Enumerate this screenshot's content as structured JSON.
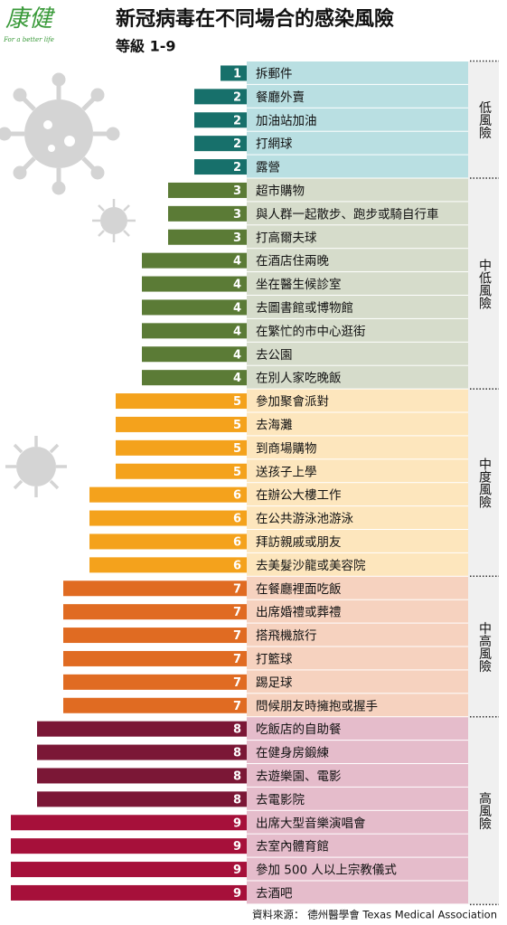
{
  "logo": {
    "name": "康健",
    "tagline": "For a better life"
  },
  "chart_data": {
    "type": "bar",
    "title": "新冠病毒在不同場合的感染風險",
    "subtitle": "等級 1-9",
    "series": [
      {
        "name": "低風險",
        "background": "#b9dfe2",
        "colors": [
          "#17706b",
          "#17706b",
          "#17706b",
          "#17706b",
          "#17706b"
        ],
        "categories": [
          "拆郵件",
          "餐廳外賣",
          "加油站加油",
          "打網球",
          "露營"
        ],
        "values": [
          1,
          2,
          2,
          2,
          2
        ]
      },
      {
        "name": "中低風險",
        "background": "#d6dccb",
        "colors": [
          "#5b7b36",
          "#5b7b36",
          "#5b7b36",
          "#5b7b36",
          "#5b7b36",
          "#5b7b36",
          "#5b7b36",
          "#5b7b36",
          "#5b7b36"
        ],
        "categories": [
          "超市購物",
          "與人群一起散步、跑步或騎自行車",
          "打高爾夫球",
          "在酒店住兩晚",
          "坐在醫生候診室",
          "去圖書館或博物館",
          "在繁忙的市中心逛街",
          "去公園",
          "在別人家吃晚飯"
        ],
        "values": [
          3,
          3,
          3,
          4,
          4,
          4,
          4,
          4,
          4
        ]
      },
      {
        "name": "中度風險",
        "background": "#fde6bd",
        "colors": [
          "#f4a21c",
          "#f4a21c",
          "#f4a21c",
          "#f4a21c",
          "#f4a21c",
          "#f4a21c",
          "#f4a21c",
          "#f4a21c"
        ],
        "categories": [
          "參加聚會派對",
          "去海灘",
          "到商場購物",
          "送孩子上學",
          "在辦公大樓工作",
          "在公共游泳池游泳",
          "拜訪親戚或朋友",
          "去美髮沙龍或美容院"
        ],
        "values": [
          5,
          5,
          5,
          5,
          6,
          6,
          6,
          6
        ]
      },
      {
        "name": "中高風險",
        "background": "#f6d2bf",
        "colors": [
          "#e06b22",
          "#e06b22",
          "#e06b22",
          "#e06b22",
          "#e06b22",
          "#e06b22"
        ],
        "categories": [
          "在餐廳裡面吃飯",
          "出席婚禮或葬禮",
          "搭飛機旅行",
          "打籃球",
          "踢足球",
          "問候朋友時擁抱或握手"
        ],
        "values": [
          7,
          7,
          7,
          7,
          7,
          7
        ]
      },
      {
        "name": "高風險",
        "background": "#e5bccb",
        "colors": [
          "#7b1736",
          "#7b1736",
          "#7b1736",
          "#7b1736",
          "#a6103a",
          "#a6103a",
          "#a6103a",
          "#a6103a"
        ],
        "categories": [
          "吃飯店的自助餐",
          "在健身房鍛練",
          "去遊樂園、電影",
          "去電影院",
          "出席大型音樂演唱會",
          "去室內體育館",
          "參加 500 人以上宗教儀式",
          "去酒吧"
        ],
        "values": [
          8,
          8,
          8,
          8,
          9,
          9,
          9,
          9
        ]
      }
    ],
    "source": "資料來源： 德州醫學會 Texas Medical Association"
  }
}
